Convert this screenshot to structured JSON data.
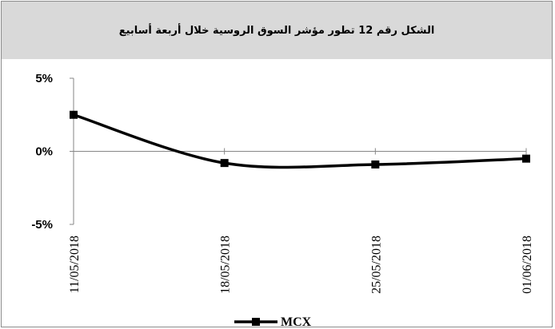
{
  "chart_data": {
    "type": "line",
    "title": "الشكل رقم 12 تطور مؤشر السوق الروسية خلال أربعة أسابيع",
    "xlabel": "",
    "ylabel": "",
    "categories": [
      "11/05/2018",
      "18/05/2018",
      "25/05/2018",
      "01/06/2018"
    ],
    "series": [
      {
        "name": "MCX",
        "values": [
          2.5,
          -0.8,
          -0.9,
          -0.5
        ]
      }
    ],
    "yticks": [
      {
        "value": 5,
        "label": "5%"
      },
      {
        "value": 0,
        "label": "0%"
      },
      {
        "value": -5,
        "label": "-5%"
      }
    ],
    "ylim": [
      -5,
      5
    ],
    "grid": false,
    "legend": "bottom",
    "colors": {
      "series": "#000000",
      "axis": "#868686",
      "title_band": "#d9d9d9",
      "border": "#8c8c8c"
    }
  }
}
